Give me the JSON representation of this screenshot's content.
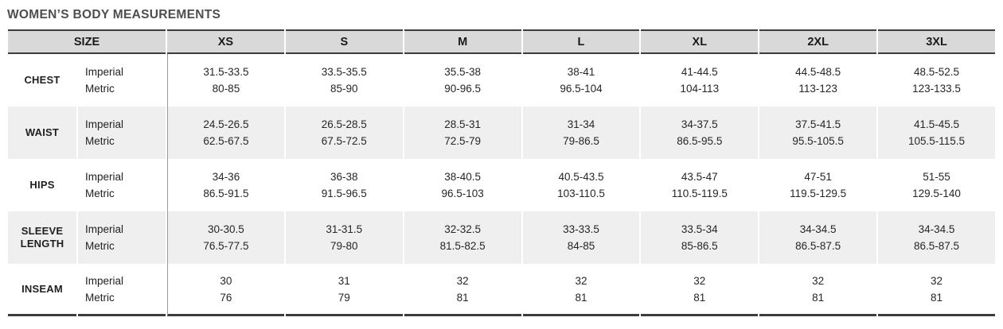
{
  "title": "WOMEN’S BODY MEASUREMENTS",
  "colors": {
    "header_bg": "#d9d9d9",
    "stripe_bg": "#efefef",
    "rule_dark": "#3d3d3d",
    "divider_gray": "#9a9a9a",
    "title_text": "#4e4e4e",
    "body_text": "#262626"
  },
  "table": {
    "size_header": "SIZE",
    "size_labels": [
      "XS",
      "S",
      "M",
      "L",
      "XL",
      "2XL",
      "3XL"
    ],
    "unit_labels": {
      "imperial": "Imperial",
      "metric": "Metric"
    },
    "rows": [
      {
        "label": "CHEST",
        "imperial": [
          "31.5-33.5",
          "33.5-35.5",
          "35.5-38",
          "38-41",
          "41-44.5",
          "44.5-48.5",
          "48.5-52.5"
        ],
        "metric": [
          "80-85",
          "85-90",
          "90-96.5",
          "96.5-104",
          "104-113",
          "113-123",
          "123-133.5"
        ]
      },
      {
        "label": "WAIST",
        "imperial": [
          "24.5-26.5",
          "26.5-28.5",
          "28.5-31",
          "31-34",
          "34-37.5",
          "37.5-41.5",
          "41.5-45.5"
        ],
        "metric": [
          "62.5-67.5",
          "67.5-72.5",
          "72.5-79",
          "79-86.5",
          "86.5-95.5",
          "95.5-105.5",
          "105.5-115.5"
        ]
      },
      {
        "label": "HIPS",
        "imperial": [
          "34-36",
          "36-38",
          "38-40.5",
          "40.5-43.5",
          "43.5-47",
          "47-51",
          "51-55"
        ],
        "metric": [
          "86.5-91.5",
          "91.5-96.5",
          "96.5-103",
          "103-110.5",
          "110.5-119.5",
          "119.5-129.5",
          "129.5-140"
        ]
      },
      {
        "label": "SLEEVE LENGTH",
        "imperial": [
          "30-30.5",
          "31-31.5",
          "32-32.5",
          "33-33.5",
          "33.5-34",
          "34-34.5",
          "34-34.5"
        ],
        "metric": [
          "76.5-77.5",
          "79-80",
          "81.5-82.5",
          "84-85",
          "85-86.5",
          "86.5-87.5",
          "86.5-87.5"
        ]
      },
      {
        "label": "INSEAM",
        "imperial": [
          "30",
          "31",
          "32",
          "32",
          "32",
          "32",
          "32"
        ],
        "metric": [
          "76",
          "79",
          "81",
          "81",
          "81",
          "81",
          "81"
        ]
      }
    ]
  }
}
